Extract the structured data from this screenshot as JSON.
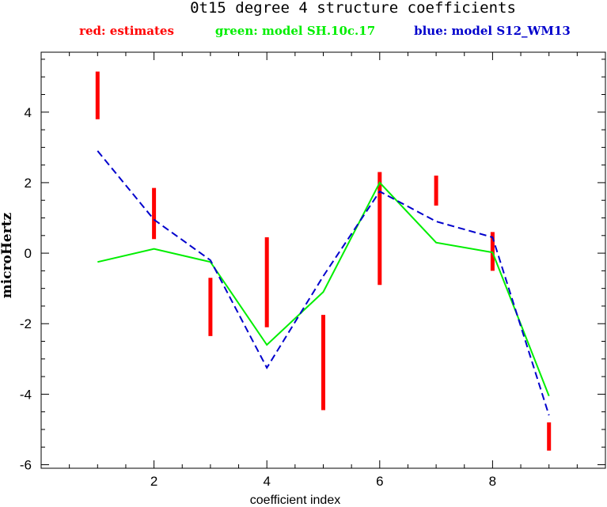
{
  "chart_data": {
    "type": "line",
    "title": "0t15 degree 4 structure coefficients",
    "legend": [
      {
        "label": "red: estimates",
        "color": "#ff0000"
      },
      {
        "label": "green: model SH.10c.17",
        "color": "#00ee00"
      },
      {
        "label": "blue: model S12_WM13",
        "color": "#0000cc"
      }
    ],
    "xlabel": "coefficient index",
    "ylabel": "microHertz",
    "xlim": [
      0,
      10
    ],
    "ylim": [
      -6.1,
      5.7
    ],
    "x_ticks": [
      2,
      4,
      6,
      8
    ],
    "x_tick_labels": [
      "2",
      "4",
      "6",
      "8"
    ],
    "y_ticks": [
      -6,
      -4,
      -2,
      0,
      2,
      4
    ],
    "y_tick_labels": [
      "-6",
      "-4",
      "-2",
      "0",
      "2",
      "4"
    ],
    "grid": false,
    "estimates": [
      {
        "x": 1,
        "low": 3.8,
        "high": 5.15
      },
      {
        "x": 2,
        "low": 0.4,
        "high": 1.85
      },
      {
        "x": 3,
        "low": -2.35,
        "high": -0.7
      },
      {
        "x": 4,
        "low": -2.1,
        "high": 0.45
      },
      {
        "x": 5,
        "low": -4.45,
        "high": -1.75
      },
      {
        "x": 6,
        "low": -0.9,
        "high": 2.3
      },
      {
        "x": 7,
        "low": 1.35,
        "high": 2.2
      },
      {
        "x": 8,
        "low": -0.5,
        "high": 0.6
      },
      {
        "x": 9,
        "low": -5.6,
        "high": -4.8
      }
    ],
    "series": [
      {
        "name": "model SH.10c.17",
        "color": "#00ee00",
        "style": "solid",
        "x": [
          1,
          2,
          3,
          4,
          5,
          6,
          7,
          8,
          9
        ],
        "values": [
          -0.25,
          0.12,
          -0.25,
          -2.6,
          -1.1,
          2.0,
          0.3,
          0.02,
          -4.05
        ]
      },
      {
        "name": "model S12_WM13",
        "color": "#0000cc",
        "style": "dashed",
        "x": [
          1,
          2,
          3,
          4,
          5,
          6,
          7,
          8,
          9
        ],
        "values": [
          2.9,
          0.95,
          -0.2,
          -3.25,
          -0.65,
          1.75,
          0.9,
          0.45,
          -4.6
        ]
      }
    ]
  }
}
